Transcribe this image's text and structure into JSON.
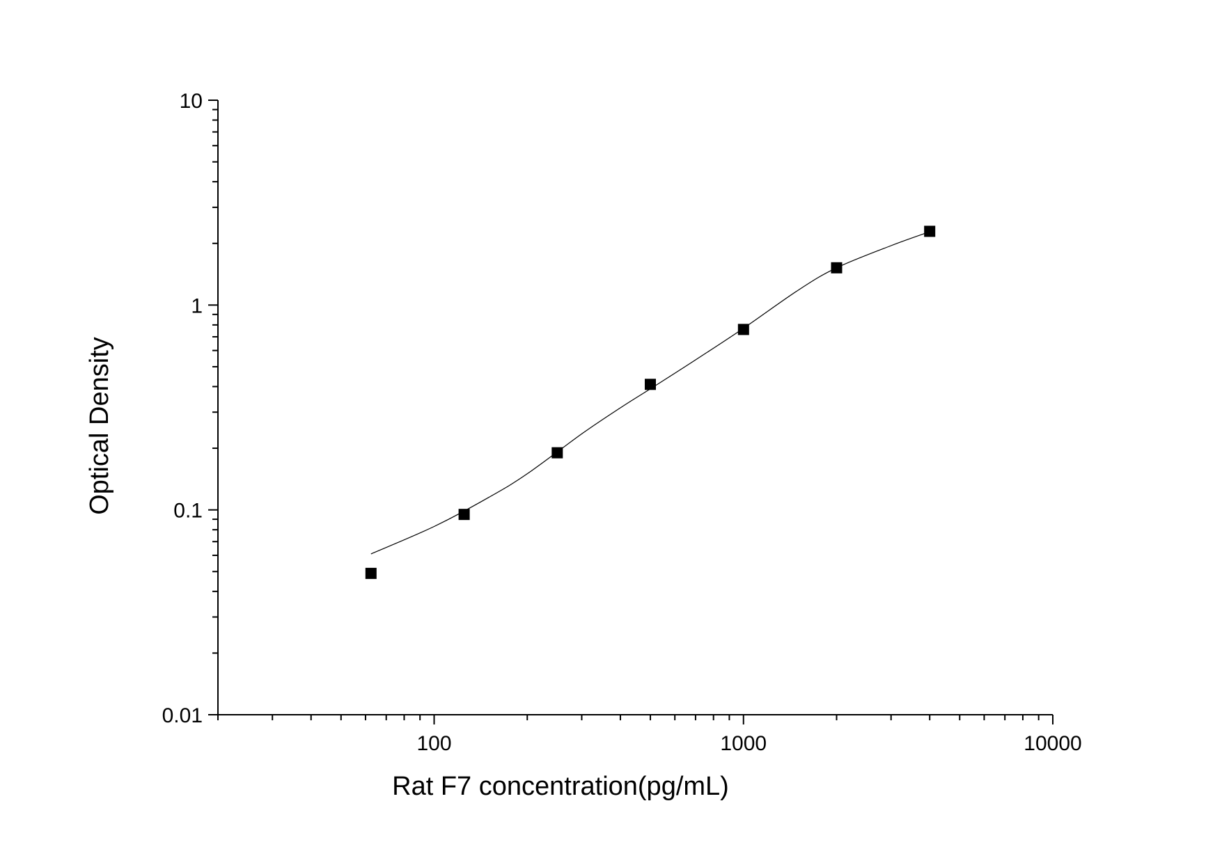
{
  "chart_data": {
    "type": "scatter",
    "xlabel": "Rat F7 concentration(pg/mL)",
    "ylabel": "Optical Density",
    "x_scale": "log",
    "y_scale": "log",
    "xlim": [
      20,
      10000
    ],
    "ylim": [
      0.01,
      10
    ],
    "x_ticks": [
      "100",
      "1000",
      "10000"
    ],
    "y_ticks": [
      "0.01",
      "0.1",
      "1",
      "10"
    ],
    "grid": false,
    "legend": "none",
    "series": [
      {
        "marker": "square",
        "color": "#000000",
        "x": [
          62.5,
          125,
          250,
          500,
          1000,
          2000,
          4000
        ],
        "y": [
          0.049,
          0.095,
          0.19,
          0.41,
          0.76,
          1.52,
          2.29
        ]
      }
    ],
    "fit_curve": {
      "color": "#000000",
      "x": [
        62.5,
        100,
        150,
        200,
        300,
        400,
        500,
        700,
        1000,
        1500,
        2000,
        3000,
        4000
      ],
      "y": [
        0.061,
        0.083,
        0.115,
        0.15,
        0.235,
        0.315,
        0.39,
        0.54,
        0.77,
        1.18,
        1.52,
        1.95,
        2.28
      ]
    }
  }
}
